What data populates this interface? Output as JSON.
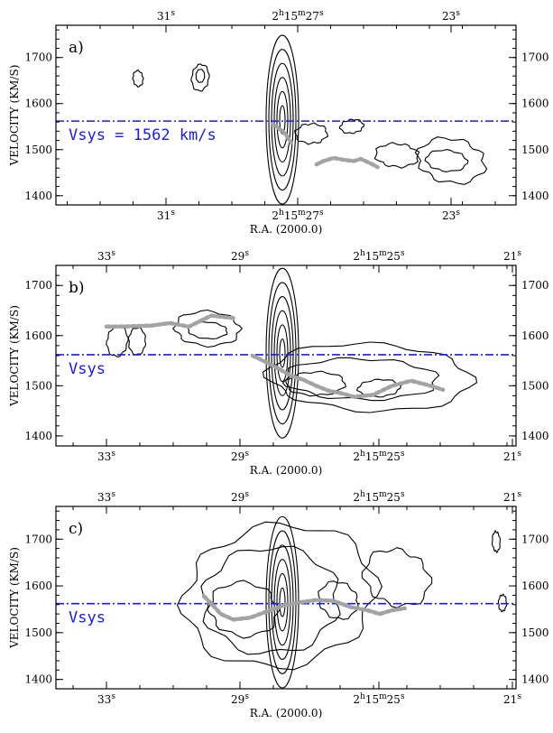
{
  "colors": {
    "axis": "#000000",
    "contour": "#000000",
    "systemic_line": "#1a1aee",
    "ridge": "#a3a3a3"
  },
  "chart_data": [
    {
      "type": "line",
      "panel_label": "a)",
      "ylabel": "VELOCITY (KM/S)",
      "xlabel": "R.A. (2000.0)",
      "ylim": [
        1380,
        1770
      ],
      "y_ticks": [
        "1400",
        "1500",
        "1600",
        "1700"
      ],
      "x_ticks": [
        {
          "h": "",
          "m": "",
          "s": "31"
        },
        {
          "h": "2",
          "m": "15",
          "s": "27"
        },
        {
          "h": "",
          "m": "",
          "s": "23"
        }
      ],
      "systemic_velocity": 1562,
      "systemic_label": "Vsys = 1562 km/s",
      "series": [
        {
          "values": [
            [
              0.0,
              1555
            ],
            [
              0.02,
              1552
            ],
            [
              0.04,
              1545
            ],
            [
              0.06,
              1540
            ],
            [
              0.08,
              1532
            ],
            [
              0.11,
              1515
            ]
          ]
        },
        {
          "values": [
            [
              0.26,
              1468
            ],
            [
              0.3,
              1475
            ],
            [
              0.36,
              1482
            ],
            [
              0.42,
              1478
            ],
            [
              0.48,
              1475
            ],
            [
              0.52,
              1480
            ],
            [
              0.58,
              1470
            ],
            [
              0.62,
              1462
            ]
          ]
        }
      ]
    },
    {
      "type": "line",
      "panel_label": "b)",
      "ylabel": "VELOCITY (KM/S)",
      "xlabel": "R.A. (2000.0)",
      "ylim": [
        1380,
        1740
      ],
      "y_ticks": [
        "1400",
        "1500",
        "1600",
        "1700"
      ],
      "x_ticks": [
        {
          "h": "",
          "m": "",
          "s": "33"
        },
        {
          "h": "",
          "m": "",
          "s": "29"
        },
        {
          "h": "2",
          "m": "15",
          "s": "25"
        },
        {
          "h": "",
          "m": "",
          "s": "21"
        }
      ],
      "systemic_velocity": 1562,
      "systemic_label": "Vsys",
      "series": [
        {
          "values": [
            [
              0.0,
              1618
            ],
            [
              0.04,
              1618
            ],
            [
              0.14,
              1620
            ],
            [
              0.2,
              1625
            ],
            [
              0.26,
              1618
            ],
            [
              0.33,
              1640
            ],
            [
              0.4,
              1635
            ]
          ]
        },
        {
          "values": [
            [
              0.46,
              1560
            ],
            [
              0.5,
              1548
            ],
            [
              0.54,
              1535
            ],
            [
              0.58,
              1520
            ],
            [
              0.62,
              1512
            ],
            [
              0.66,
              1500
            ],
            [
              0.7,
              1490
            ],
            [
              0.74,
              1485
            ],
            [
              0.78,
              1478
            ],
            [
              0.84,
              1482
            ],
            [
              0.9,
              1500
            ],
            [
              0.96,
              1510
            ],
            [
              1.02,
              1500
            ],
            [
              1.06,
              1492
            ]
          ]
        }
      ]
    },
    {
      "type": "line",
      "panel_label": "c)",
      "ylabel": "VELOCITY (KM/S)",
      "xlabel": "R.A. (2000.0)",
      "ylim": [
        1380,
        1770
      ],
      "y_ticks": [
        "1400",
        "1500",
        "1600",
        "1700"
      ],
      "x_ticks": [
        {
          "h": "",
          "m": "",
          "s": "33"
        },
        {
          "h": "",
          "m": "",
          "s": "29"
        },
        {
          "h": "2",
          "m": "15",
          "s": "25"
        },
        {
          "h": "",
          "m": "",
          "s": "21"
        }
      ],
      "systemic_velocity": 1562,
      "systemic_label": "Vsys",
      "series": [
        {
          "values": [
            [
              0.0,
              1578
            ],
            [
              0.04,
              1560
            ],
            [
              0.08,
              1540
            ],
            [
              0.14,
              1528
            ],
            [
              0.22,
              1532
            ],
            [
              0.3,
              1545
            ],
            [
              0.38,
              1558
            ],
            [
              0.46,
              1565
            ],
            [
              0.54,
              1570
            ],
            [
              0.62,
              1568
            ],
            [
              0.7,
              1555
            ],
            [
              0.78,
              1548
            ],
            [
              0.84,
              1540
            ],
            [
              0.9,
              1548
            ],
            [
              0.96,
              1552
            ]
          ]
        }
      ]
    }
  ]
}
